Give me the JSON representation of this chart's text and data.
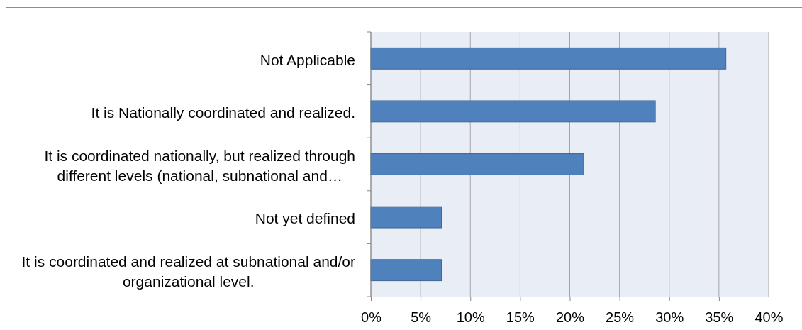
{
  "chart_data": {
    "type": "bar",
    "orientation": "horizontal",
    "categories": [
      "Not Applicable",
      "It is Nationally coordinated and realized.",
      "It is coordinated nationally, but realized through different levels (national, subnational and…",
      "Not yet defined",
      "It is coordinated and realized at subnational and/or organizational level."
    ],
    "values": [
      35.7,
      28.6,
      21.4,
      7.1,
      7.1
    ],
    "color": "#4f81bd",
    "xlim": [
      0,
      40
    ],
    "xticks": [
      {
        "value": 0,
        "label": "0%"
      },
      {
        "value": 5,
        "label": "5%"
      },
      {
        "value": 10,
        "label": "10%"
      },
      {
        "value": 15,
        "label": "15%"
      },
      {
        "value": 20,
        "label": "20%"
      },
      {
        "value": 25,
        "label": "25%"
      },
      {
        "value": 30,
        "label": "30%"
      },
      {
        "value": 35,
        "label": "35%"
      },
      {
        "value": 40,
        "label": "40%"
      }
    ],
    "grid": "x"
  }
}
